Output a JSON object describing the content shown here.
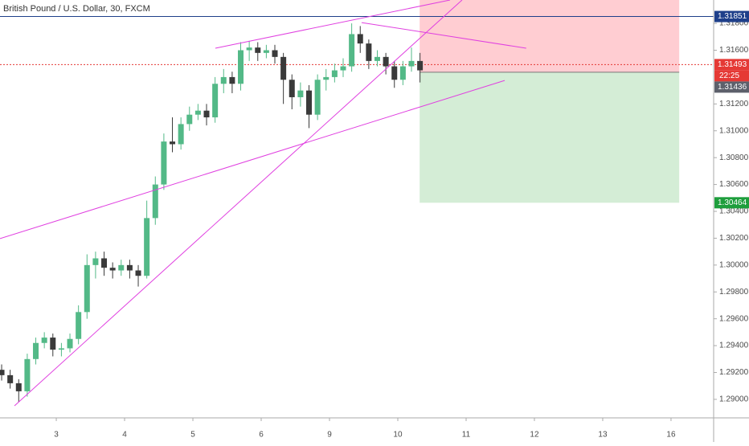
{
  "chart_data": {
    "type": "candlestick",
    "title": "British Pound / U.S. Dollar, 30, FXCM",
    "up_color": "#53b987",
    "down_color": "#3a3a3a",
    "xlim": [
      2.176,
      12.624
    ],
    "xticks": [
      {
        "value": 3,
        "label": "3"
      },
      {
        "value": 4,
        "label": "4"
      },
      {
        "value": 5,
        "label": "5"
      },
      {
        "value": 6,
        "label": "6"
      },
      {
        "value": 7,
        "label": "9"
      },
      {
        "value": 8,
        "label": "10"
      },
      {
        "value": 9,
        "label": "11"
      },
      {
        "value": 10,
        "label": "12"
      },
      {
        "value": 11,
        "label": "13"
      },
      {
        "value": 12,
        "label": "16"
      }
    ],
    "ylim": [
      1.28862,
      1.31974
    ],
    "yticks": [
      {
        "value": 1.29,
        "label": "1.29000"
      },
      {
        "value": 1.292,
        "label": "1.29200"
      },
      {
        "value": 1.294,
        "label": "1.29400"
      },
      {
        "value": 1.296,
        "label": "1.29600"
      },
      {
        "value": 1.298,
        "label": "1.29800"
      },
      {
        "value": 1.3,
        "label": "1.30000"
      },
      {
        "value": 1.302,
        "label": "1.30200"
      },
      {
        "value": 1.304,
        "label": "1.30400"
      },
      {
        "value": 1.306,
        "label": "1.30600"
      },
      {
        "value": 1.308,
        "label": "1.30800"
      },
      {
        "value": 1.31,
        "label": "1.31000"
      },
      {
        "value": 1.312,
        "label": "1.31200"
      },
      {
        "value": 1.316,
        "label": "1.31600"
      },
      {
        "value": 1.318,
        "label": "1.31800"
      }
    ],
    "x": [
      2.2,
      2.325,
      2.45,
      2.575,
      2.7,
      2.825,
      2.95,
      3.075,
      3.2,
      3.325,
      3.45,
      3.575,
      3.7,
      3.825,
      3.95,
      4.075,
      4.2,
      4.325,
      4.45,
      4.575,
      4.7,
      4.825,
      4.95,
      5.075,
      5.2,
      5.325,
      5.45,
      5.575,
      5.7,
      5.825,
      5.95,
      6.075,
      6.2,
      6.325,
      6.45,
      6.575,
      6.7,
      6.825,
      6.95,
      7.075,
      7.2,
      7.325,
      7.45,
      7.575,
      7.7,
      7.825,
      7.95,
      8.075,
      8.2,
      8.325
    ],
    "open": [
      1.2922,
      1.2918,
      1.2912,
      1.2906,
      1.293,
      1.2942,
      1.2946,
      1.2937,
      1.2938,
      1.2945,
      1.2965,
      1.3,
      1.3005,
      1.2998,
      1.2996,
      1.3,
      1.2996,
      1.2992,
      1.3035,
      1.306,
      1.3092,
      1.309,
      1.3105,
      1.3112,
      1.3115,
      1.311,
      1.3135,
      1.314,
      1.3135,
      1.316,
      1.3162,
      1.3158,
      1.316,
      1.3155,
      1.3138,
      1.3125,
      1.313,
      1.3112,
      1.3138,
      1.314,
      1.3145,
      1.3148,
      1.3172,
      1.3165,
      1.3152,
      1.3155,
      1.3148,
      1.3138,
      1.3148,
      1.3152
    ],
    "high": [
      1.2926,
      1.2922,
      1.2915,
      1.2934,
      1.2946,
      1.295,
      1.2949,
      1.2942,
      1.2949,
      1.297,
      1.3008,
      1.301,
      1.301,
      1.3002,
      1.3004,
      1.3004,
      1.3,
      1.3048,
      1.3066,
      1.3098,
      1.311,
      1.311,
      1.3118,
      1.312,
      1.312,
      1.314,
      1.3146,
      1.3144,
      1.3166,
      1.3167,
      1.3166,
      1.3164,
      1.3164,
      1.3158,
      1.3142,
      1.3136,
      1.3134,
      1.3142,
      1.3146,
      1.315,
      1.3154,
      1.318,
      1.3178,
      1.3168,
      1.316,
      1.3158,
      1.3152,
      1.3152,
      1.3162,
      1.3158
    ],
    "low": [
      1.2914,
      1.2908,
      1.2898,
      1.2902,
      1.2926,
      1.2938,
      1.2932,
      1.2932,
      1.2935,
      1.2941,
      1.296,
      1.299,
      1.2992,
      1.299,
      1.2992,
      1.299,
      1.2984,
      1.299,
      1.303,
      1.3056,
      1.3084,
      1.3086,
      1.31,
      1.3108,
      1.3104,
      1.3106,
      1.3128,
      1.3128,
      1.313,
      1.3152,
      1.3152,
      1.3154,
      1.315,
      1.312,
      1.3116,
      1.3118,
      1.3102,
      1.3108,
      1.313,
      1.3136,
      1.314,
      1.3144,
      1.3158,
      1.3146,
      1.3148,
      1.3142,
      1.3132,
      1.3134,
      1.3144,
      1.3136
    ],
    "close": [
      1.2918,
      1.2912,
      1.2906,
      1.293,
      1.2942,
      1.2946,
      1.2937,
      1.2938,
      1.2945,
      1.2965,
      1.3,
      1.3005,
      1.2998,
      1.2996,
      1.3,
      1.2996,
      1.2992,
      1.3035,
      1.306,
      1.3092,
      1.309,
      1.3105,
      1.3112,
      1.3115,
      1.311,
      1.3135,
      1.314,
      1.3135,
      1.316,
      1.3162,
      1.3158,
      1.316,
      1.3155,
      1.3138,
      1.3125,
      1.313,
      1.3112,
      1.3138,
      1.314,
      1.3145,
      1.3148,
      1.3172,
      1.3165,
      1.3152,
      1.3155,
      1.3148,
      1.3138,
      1.3148,
      1.3152,
      1.3145
    ],
    "trendlines": [
      {
        "color": "#e040e0",
        "x": [
          2.176,
          9.565
        ],
        "y": [
          1.30197,
          1.31375
        ]
      },
      {
        "color": "#e040e0",
        "x": [
          2.388,
          8.941
        ],
        "y": [
          1.28952,
          1.31974
        ]
      },
      {
        "color": "#e040e0",
        "x": [
          5.329,
          8.765
        ],
        "y": [
          1.31615,
          1.31974
        ]
      },
      {
        "color": "#e040e0",
        "x": [
          7.47,
          9.88
        ],
        "y": [
          1.31806,
          1.31615
        ]
      }
    ],
    "horizontal_line": {
      "value": 1.31851,
      "color": "#1e3f8a"
    },
    "price_line": {
      "value": 1.31493,
      "color": "#e53935",
      "countdown": "22:25"
    },
    "last_price": {
      "value": 1.31436,
      "color": "#5d606b"
    },
    "position": {
      "x": [
        8.32,
        12.12
      ],
      "entry": 1.31436,
      "stop": 1.31974,
      "target": 1.30464,
      "stop_color": "#ffcdd2",
      "target_color": "#d4edd6",
      "target_label_color": "#1e9e3c"
    }
  }
}
